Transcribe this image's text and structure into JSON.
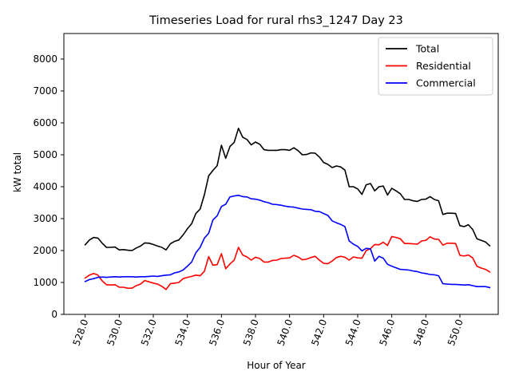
{
  "chart_data": {
    "type": "line",
    "title": "Timeseries Load for rural rhs3_1247  Day 23",
    "xlabel": "Hour of Year",
    "ylabel": "kW total",
    "xlim": [
      526.75,
      552.25
    ],
    "ylim": [
      0,
      8800
    ],
    "x_ticks": [
      528,
      530,
      532,
      534,
      536,
      538,
      540,
      542,
      544,
      546,
      548,
      550
    ],
    "x_tick_labels": [
      "528.0",
      "530.0",
      "532.0",
      "534.0",
      "536.0",
      "538.0",
      "540.0",
      "542.0",
      "544.0",
      "546.0",
      "548.0",
      "550.0"
    ],
    "y_ticks": [
      0,
      1000,
      2000,
      3000,
      4000,
      5000,
      6000,
      7000,
      8000
    ],
    "y_tick_labels": [
      "0",
      "1000",
      "2000",
      "3000",
      "4000",
      "5000",
      "6000",
      "7000",
      "8000"
    ],
    "legend_position": "top-right",
    "x": [
      528.0,
      528.25,
      528.5,
      528.75,
      529.0,
      529.25,
      529.5,
      529.75,
      530.0,
      530.25,
      530.5,
      530.75,
      531.0,
      531.25,
      531.5,
      531.75,
      532.0,
      532.25,
      532.5,
      532.75,
      533.0,
      533.25,
      533.5,
      533.75,
      534.0,
      534.25,
      534.5,
      534.75,
      535.0,
      535.25,
      535.5,
      535.75,
      536.0,
      536.25,
      536.5,
      536.75,
      537.0,
      537.25,
      537.5,
      537.75,
      538.0,
      538.25,
      538.5,
      538.75,
      539.0,
      539.25,
      539.5,
      539.75,
      540.0,
      540.25,
      540.5,
      540.75,
      541.0,
      541.25,
      541.5,
      541.75,
      542.0,
      542.25,
      542.5,
      542.75,
      543.0,
      543.25,
      543.5,
      543.75,
      544.0,
      544.25,
      544.5,
      544.75,
      545.0,
      545.25,
      545.5,
      545.75,
      546.0,
      546.25,
      546.5,
      546.75,
      547.0,
      547.25,
      547.5,
      547.75,
      548.0,
      548.25,
      548.5,
      548.75,
      549.0,
      549.25,
      549.5,
      549.75,
      550.0,
      550.25,
      550.5,
      550.75,
      551.0,
      551.25,
      551.5,
      551.75
    ],
    "series": [
      {
        "name": "Total",
        "color": "#000000",
        "values": [
          2180,
          2330,
          2410,
          2390,
          2230,
          2100,
          2100,
          2110,
          2020,
          2030,
          2010,
          2000,
          2080,
          2140,
          2240,
          2230,
          2190,
          2140,
          2100,
          2020,
          2210,
          2290,
          2330,
          2490,
          2680,
          2840,
          3160,
          3300,
          3750,
          4340,
          4510,
          4660,
          5300,
          4890,
          5260,
          5390,
          5830,
          5550,
          5480,
          5310,
          5400,
          5330,
          5160,
          5140,
          5140,
          5140,
          5160,
          5160,
          5140,
          5220,
          5130,
          5000,
          5010,
          5060,
          5050,
          4930,
          4760,
          4700,
          4600,
          4650,
          4620,
          4520,
          4000,
          4000,
          3930,
          3760,
          4060,
          4100,
          3870,
          4000,
          4020,
          3740,
          3950,
          3870,
          3780,
          3600,
          3600,
          3560,
          3540,
          3600,
          3610,
          3690,
          3600,
          3560,
          3130,
          3170,
          3170,
          3160,
          2780,
          2750,
          2810,
          2660,
          2370,
          2320,
          2270,
          2150
        ]
      },
      {
        "name": "Residential",
        "color": "#ff0000",
        "values": [
          1140,
          1230,
          1280,
          1230,
          1050,
          930,
          920,
          930,
          850,
          850,
          820,
          820,
          900,
          950,
          1060,
          1020,
          980,
          950,
          880,
          780,
          960,
          980,
          1000,
          1120,
          1160,
          1190,
          1230,
          1210,
          1350,
          1810,
          1540,
          1560,
          1900,
          1430,
          1580,
          1700,
          2100,
          1860,
          1800,
          1700,
          1790,
          1750,
          1640,
          1640,
          1690,
          1700,
          1750,
          1760,
          1770,
          1850,
          1800,
          1710,
          1730,
          1780,
          1820,
          1700,
          1600,
          1590,
          1670,
          1780,
          1820,
          1790,
          1700,
          1800,
          1770,
          1760,
          2000,
          2060,
          2190,
          2180,
          2260,
          2160,
          2440,
          2410,
          2370,
          2220,
          2220,
          2210,
          2200,
          2300,
          2320,
          2430,
          2360,
          2350,
          2170,
          2230,
          2230,
          2220,
          1850,
          1830,
          1860,
          1770,
          1510,
          1450,
          1410,
          1330
        ]
      },
      {
        "name": "Commercial",
        "color": "#0000ff",
        "values": [
          1030,
          1090,
          1120,
          1160,
          1170,
          1160,
          1170,
          1180,
          1170,
          1180,
          1180,
          1180,
          1170,
          1180,
          1180,
          1190,
          1200,
          1190,
          1210,
          1230,
          1240,
          1300,
          1330,
          1390,
          1510,
          1640,
          1930,
          2100,
          2390,
          2540,
          2960,
          3090,
          3380,
          3450,
          3680,
          3710,
          3730,
          3690,
          3680,
          3620,
          3610,
          3580,
          3530,
          3500,
          3450,
          3440,
          3420,
          3390,
          3370,
          3360,
          3330,
          3300,
          3290,
          3280,
          3230,
          3220,
          3160,
          3100,
          2930,
          2870,
          2820,
          2750,
          2300,
          2200,
          2130,
          1990,
          2070,
          2050,
          1670,
          1820,
          1760,
          1570,
          1510,
          1460,
          1410,
          1400,
          1390,
          1360,
          1340,
          1300,
          1280,
          1250,
          1240,
          1210,
          960,
          950,
          940,
          940,
          930,
          920,
          930,
          900,
          870,
          870,
          870,
          840
        ]
      }
    ]
  }
}
